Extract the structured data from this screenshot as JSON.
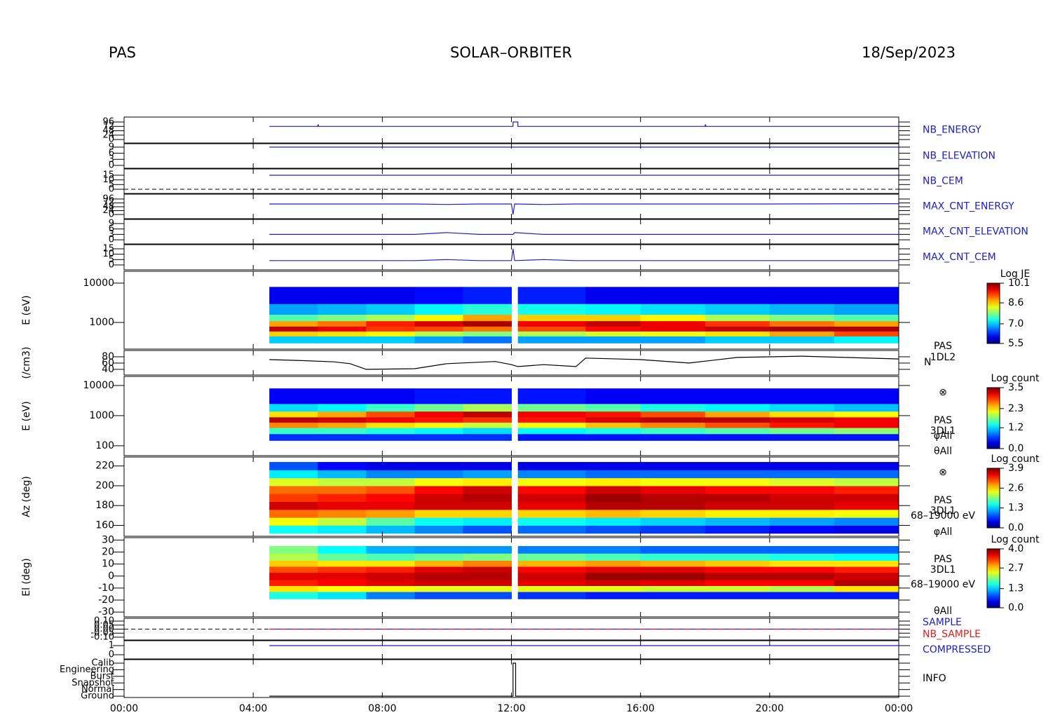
{
  "header": {
    "left": "PAS",
    "title": "SOLAR–ORBITER",
    "date": "18/Sep/2023"
  },
  "chart_data": [
    {
      "type": "line",
      "ylim": [
        -19,
        123
      ],
      "yticks": [
        0,
        24,
        48,
        72,
        96
      ],
      "series": [
        {
          "name": "NB_ENERGY",
          "color": "#2020c0",
          "x": [
            4.5,
            6,
            6,
            6.02,
            6.02,
            12.05,
            12.05,
            12.2,
            12.2,
            18,
            18,
            18.02,
            18.02,
            24
          ],
          "values": [
            72,
            72,
            80,
            80,
            72,
            72,
            96,
            96,
            72,
            72,
            80,
            80,
            72,
            72
          ]
        }
      ]
    },
    {
      "type": "line",
      "ylim": [
        -1.4,
        10.7
      ],
      "yticks": [
        0,
        3,
        6,
        9
      ],
      "series": [
        {
          "name": "NB_ELEVATION",
          "color": "#2020c0",
          "x": [
            4.5,
            24
          ],
          "values": [
            9,
            9
          ]
        }
      ]
    },
    {
      "type": "line",
      "ylim": [
        -4.5,
        21.7
      ],
      "yticks": [
        0,
        5,
        10,
        15
      ],
      "zero_line": true,
      "series": [
        {
          "name": "NB_CEM",
          "color": "#2020c0",
          "x": [
            4.5,
            24
          ],
          "values": [
            15,
            15
          ]
        }
      ]
    },
    {
      "type": "line",
      "ylim": [
        -26,
        126
      ],
      "yticks": [
        0,
        24,
        48,
        72,
        96
      ],
      "series": [
        {
          "name": "MAX_CNT_ENERGY",
          "color": "#2020c0",
          "x": [
            4.5,
            9,
            10,
            11,
            12,
            12.05,
            12.1,
            13,
            14,
            20,
            24
          ],
          "values": [
            65,
            65,
            62,
            65,
            65,
            0,
            65,
            62,
            65,
            65,
            67
          ]
        }
      ]
    },
    {
      "type": "line",
      "ylim": [
        -2.3,
        11.3
      ],
      "yticks": [
        0,
        3,
        6,
        9
      ],
      "series": [
        {
          "name": "MAX_CNT_ELEVATION",
          "color": "#2020c0",
          "x": [
            4.5,
            9,
            10,
            11,
            12,
            12.05,
            12.1,
            13,
            14,
            20,
            24
          ],
          "values": [
            3,
            3,
            4,
            3,
            3,
            3,
            4,
            3,
            3,
            3,
            3
          ]
        }
      ]
    },
    {
      "type": "line",
      "ylim": [
        -4.6,
        18.9
      ],
      "yticks": [
        0,
        5,
        10,
        15
      ],
      "series": [
        {
          "name": "MAX_CNT_CEM",
          "color": "#2020c0",
          "x": [
            4.5,
            9,
            10,
            11,
            12,
            12.05,
            12.1,
            13,
            14,
            20,
            24
          ],
          "values": [
            4,
            4,
            5,
            4,
            4,
            15,
            4,
            5,
            4,
            4,
            4
          ]
        }
      ]
    },
    {
      "type": "heatmap",
      "y_label": "E (eV)",
      "log_y": true,
      "ylim": [
        210,
        20000
      ],
      "yticks": [
        1000,
        10000
      ],
      "x_edges": [
        4.5,
        6,
        7.5,
        9,
        10.5,
        12,
        12.2,
        14.3,
        16,
        18,
        20,
        22,
        24
      ],
      "y_edges": [
        300,
        450,
        600,
        800,
        1100,
        1600,
        3000,
        8000
      ],
      "z": [
        [
          7.0,
          7.0,
          7.0,
          6.8,
          6.6,
          null,
          6.8,
          6.8,
          6.8,
          7.0,
          7.0,
          7.2
        ],
        [
          8.6,
          8.5,
          8.4,
          8.0,
          7.8,
          null,
          8.0,
          8.2,
          8.3,
          8.5,
          8.8,
          9.2
        ],
        [
          9.8,
          9.6,
          9.3,
          9.2,
          9.0,
          null,
          9.2,
          9.5,
          9.6,
          9.8,
          9.9,
          9.9
        ],
        [
          8.8,
          9.0,
          9.4,
          9.7,
          9.9,
          null,
          9.6,
          9.8,
          9.6,
          9.3,
          9.0,
          8.8
        ],
        [
          7.6,
          7.8,
          8.0,
          8.4,
          8.8,
          null,
          8.6,
          8.6,
          8.4,
          8.0,
          7.8,
          7.6
        ],
        [
          6.8,
          6.9,
          7.0,
          7.2,
          7.4,
          null,
          7.3,
          7.2,
          7.1,
          7.0,
          6.9,
          6.8
        ],
        [
          6.0,
          6.0,
          6.0,
          6.1,
          6.2,
          null,
          6.2,
          6.0,
          6.0,
          6.0,
          6.0,
          6.0
        ]
      ],
      "colorbar_title": "Log JE",
      "clim": [
        5.5,
        10.1
      ],
      "cticks": [
        5.5,
        {
          "value": 7,
          "label": "7.0"
        },
        8.6,
        10.1
      ],
      "side_labels": [
        "PAS",
        "1DL2"
      ]
    },
    {
      "type": "line",
      "y_label": "(/cm3)",
      "ylim": [
        22,
        100
      ],
      "yticks": [
        40,
        60,
        80
      ],
      "series": [
        {
          "name": "N",
          "color": "#000000",
          "x": [
            4.5,
            5.5,
            6.5,
            7,
            7.5,
            9,
            10,
            11.5,
            12,
            12.2,
            13,
            14,
            14.3,
            16,
            17.5,
            19,
            21,
            24
          ],
          "values": [
            71,
            68,
            64,
            58,
            40,
            42,
            58,
            65,
            55,
            49,
            55,
            49,
            76,
            71,
            60,
            78,
            82,
            73
          ]
        }
      ]
    },
    {
      "type": "heatmap",
      "y_label": "E (eV)",
      "log_y": true,
      "ylim": [
        47,
        20000
      ],
      "yticks": [
        100,
        1000,
        10000
      ],
      "x_edges": [
        4.5,
        6,
        7.5,
        9,
        10.5,
        12,
        12.2,
        14.3,
        16,
        18,
        20,
        22,
        24
      ],
      "y_edges": [
        150,
        250,
        400,
        600,
        900,
        1400,
        2500,
        8000
      ],
      "z": [
        [
          0.6,
          0.6,
          0.6,
          0.6,
          0.6,
          null,
          0.5,
          0.5,
          0.5,
          0.5,
          0.5,
          0.5
        ],
        [
          1.5,
          1.5,
          1.4,
          1.3,
          1.2,
          null,
          1.3,
          1.4,
          1.5,
          1.6,
          1.7,
          1.8
        ],
        [
          2.6,
          2.5,
          2.3,
          2.2,
          2.0,
          null,
          2.2,
          2.4,
          2.6,
          2.8,
          3.0,
          3.1
        ],
        [
          3.3,
          3.2,
          3.1,
          3.0,
          2.9,
          null,
          3.0,
          3.2,
          3.3,
          3.3,
          3.2,
          3.1
        ],
        [
          2.3,
          2.5,
          2.8,
          3.1,
          3.3,
          null,
          3.1,
          3.0,
          2.8,
          2.5,
          2.3,
          2.2
        ],
        [
          1.2,
          1.3,
          1.5,
          1.7,
          1.9,
          null,
          1.7,
          1.6,
          1.4,
          1.3,
          1.2,
          1.1
        ],
        [
          0.4,
          0.4,
          0.4,
          0.5,
          0.5,
          null,
          0.5,
          0.4,
          0.4,
          0.4,
          0.4,
          0.4
        ]
      ],
      "colorbar_title": "Log count",
      "clim": [
        0,
        3.5
      ],
      "cticks": [
        {
          "value": 0,
          "label": "0.0"
        },
        1.2,
        2.3,
        3.5
      ],
      "side_labels": [
        "⊗",
        "PAS",
        "3DL1",
        "φAll",
        "θAll"
      ]
    },
    {
      "type": "heatmap",
      "y_label": "Az (deg)",
      "ylim": [
        149,
        229
      ],
      "yticks": [
        160,
        180,
        200,
        220
      ],
      "x_edges": [
        4.5,
        6,
        7.5,
        9,
        10.5,
        12,
        12.2,
        14.3,
        16,
        18,
        20,
        22,
        24
      ],
      "y_edges": [
        152,
        160,
        168,
        176,
        184,
        192,
        200,
        208,
        216,
        224
      ],
      "z": [
        [
          1.5,
          1.4,
          1.2,
          1.0,
          0.8,
          null,
          0.9,
          0.8,
          0.7,
          0.6,
          0.5,
          0.4
        ],
        [
          2.4,
          2.2,
          1.8,
          1.5,
          1.4,
          null,
          1.5,
          1.4,
          1.3,
          1.2,
          1.1,
          1.0
        ],
        [
          3.0,
          2.9,
          2.8,
          2.6,
          2.6,
          null,
          2.6,
          2.7,
          2.6,
          2.5,
          2.5,
          2.4
        ],
        [
          3.6,
          3.5,
          3.5,
          3.6,
          3.6,
          null,
          3.5,
          3.7,
          3.7,
          3.6,
          3.6,
          3.5
        ],
        [
          3.2,
          3.3,
          3.4,
          3.6,
          3.7,
          null,
          3.6,
          3.8,
          3.7,
          3.7,
          3.6,
          3.6
        ],
        [
          3.0,
          3.0,
          3.1,
          3.4,
          3.6,
          null,
          3.4,
          3.6,
          3.5,
          3.4,
          3.4,
          3.3
        ],
        [
          2.3,
          2.2,
          2.2,
          2.4,
          2.5,
          null,
          2.4,
          2.5,
          2.4,
          2.4,
          2.3,
          2.2
        ],
        [
          1.4,
          1.2,
          1.0,
          1.0,
          1.1,
          null,
          1.0,
          0.9,
          0.9,
          0.9,
          0.9,
          0.9
        ],
        [
          0.8,
          0.5,
          0.4,
          0.4,
          0.4,
          null,
          0.4,
          0.4,
          0.4,
          0.4,
          0.4,
          0.4
        ]
      ],
      "colorbar_title": "Log count",
      "clim": [
        0,
        3.9
      ],
      "cticks": [
        {
          "value": 0,
          "label": "0.0"
        },
        1.3,
        2.6,
        3.9
      ],
      "side_labels": [
        "⊗",
        "PAS",
        "3DL1",
        "68–19000 eV",
        "φAll"
      ]
    },
    {
      "type": "heatmap",
      "y_label": "El (deg)",
      "ylim": [
        -34,
        32
      ],
      "yticks": [
        -30,
        -20,
        -10,
        0,
        10,
        20,
        30
      ],
      "x_edges": [
        4.5,
        6,
        7.5,
        9,
        10.5,
        12,
        12.2,
        14.3,
        16,
        18,
        20,
        22,
        24
      ],
      "y_edges": [
        -19,
        -13,
        -8,
        -3,
        3,
        8,
        13,
        19,
        25
      ],
      "z": [
        [
          1.6,
          1.4,
          1.0,
          0.8,
          0.8,
          null,
          0.7,
          0.6,
          0.6,
          0.6,
          0.6,
          0.6
        ],
        [
          2.6,
          2.5,
          2.5,
          2.4,
          2.4,
          null,
          2.4,
          2.4,
          2.3,
          2.3,
          2.2,
          2.6
        ],
        [
          3.4,
          3.5,
          3.6,
          3.7,
          3.7,
          null,
          3.6,
          3.7,
          3.6,
          3.5,
          3.5,
          3.8
        ],
        [
          3.6,
          3.6,
          3.7,
          3.8,
          3.8,
          null,
          3.7,
          3.9,
          3.9,
          3.8,
          3.8,
          3.7
        ],
        [
          3.2,
          3.3,
          3.4,
          3.6,
          3.7,
          null,
          3.5,
          3.6,
          3.6,
          3.5,
          3.5,
          3.4
        ],
        [
          2.7,
          2.6,
          2.6,
          2.8,
          3.0,
          null,
          2.8,
          2.9,
          2.8,
          2.7,
          2.6,
          2.6
        ],
        [
          2.2,
          1.9,
          1.8,
          1.9,
          2.0,
          null,
          1.9,
          1.8,
          1.7,
          1.7,
          1.6,
          1.5
        ],
        [
          2.0,
          1.5,
          1.2,
          1.1,
          1.1,
          null,
          1.0,
          1.0,
          0.9,
          0.9,
          0.9,
          0.9
        ]
      ],
      "colorbar_title": "Log count",
      "clim": [
        0,
        4
      ],
      "cticks": [
        {
          "value": 0,
          "label": "0.0"
        },
        1.3,
        2.7,
        {
          "value": 4,
          "label": "4.0"
        }
      ],
      "side_labels": [
        "PAS",
        "3DL1",
        "68–19000 eV",
        "θAll"
      ]
    },
    {
      "type": "line",
      "ylim": [
        -0.135,
        0.135
      ],
      "zero_line": true,
      "yticks": [
        {
          "value": -0.1,
          "label": "-0.10"
        },
        {
          "value": -0.05,
          "label": "-0.05"
        },
        {
          "value": 0,
          "label": "0.00"
        },
        {
          "value": 0.05,
          "label": "0.05"
        },
        {
          "value": 0.1,
          "label": "0.10"
        }
      ],
      "series": [
        {
          "name": "SAMPLE",
          "color": "#2020c0",
          "x": [
            4.5,
            24
          ],
          "values": [
            0,
            0
          ]
        },
        {
          "name": "NB_SAMPLE",
          "color": "#e02020",
          "dashed": true,
          "x": [
            4.5,
            24
          ],
          "values": [
            0,
            0
          ]
        }
      ]
    },
    {
      "type": "line",
      "ylim": [
        -0.46,
        1.54
      ],
      "yticks": [
        0,
        1
      ],
      "series": [
        {
          "name": "COMPRESSED",
          "color": "#2020c0",
          "x": [
            4.5,
            24
          ],
          "values": [
            1,
            1
          ]
        }
      ]
    },
    {
      "type": "line",
      "ylim": [
        -0.2,
        5.53
      ],
      "xlim": [
        0,
        24
      ],
      "xticks": [
        {
          "value": 0,
          "label": "00:00"
        },
        {
          "value": 4,
          "label": "04:00"
        },
        {
          "value": 8,
          "label": "08:00"
        },
        {
          "value": 12,
          "label": "12:00"
        },
        {
          "value": 16,
          "label": "16:00"
        },
        {
          "value": 20,
          "label": "20:00"
        },
        {
          "value": 24,
          "label": "00:00"
        }
      ],
      "yticks": [
        {
          "value": 0,
          "label": "Ground"
        },
        {
          "value": 1,
          "label": "Normal"
        },
        {
          "value": 2,
          "label": "Snapshot"
        },
        {
          "value": 3,
          "label": "Burst"
        },
        {
          "value": 4,
          "label": "Engineering"
        },
        {
          "value": 5,
          "label": "Calib"
        }
      ],
      "series": [
        {
          "name": "INFO",
          "color": "#000000",
          "x": [
            4.5,
            12.05,
            12.05,
            12.13,
            12.13,
            24
          ],
          "values": [
            0,
            0,
            5,
            5,
            0,
            0
          ]
        }
      ]
    }
  ]
}
